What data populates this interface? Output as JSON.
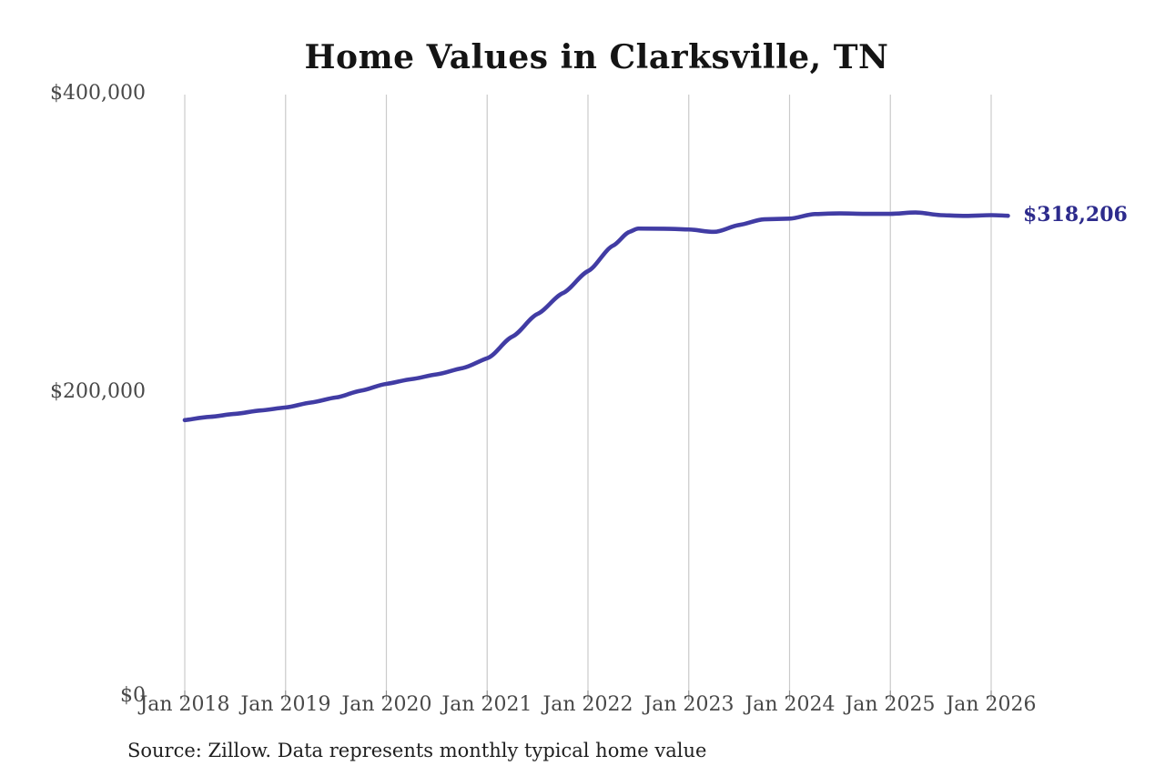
{
  "title": "Home Values in Clarksville, TN",
  "source_note": "Source: Zillow. Data represents monthly typical home value",
  "colors": {
    "line": "#413CA4",
    "end_label": "#2D2B8C",
    "gridline": "#CBCBCB",
    "tick": "#8F8F8F",
    "axis_text": "#484848",
    "title_text": "#141414",
    "source_text": "#1F1F1F",
    "background": "#FFFFFF"
  },
  "chart_data": {
    "type": "line",
    "title": "Home Values in Clarksville, TN",
    "xlabel": "",
    "ylabel": "",
    "ylim": [
      0,
      400000
    ],
    "grid": "vertical-only",
    "legend": "none",
    "x_tick_labels": [
      "Jan 2018",
      "Jan 2019",
      "Jan 2020",
      "Jan 2021",
      "Jan 2022",
      "Jan 2023",
      "Jan 2024",
      "Jan 2025",
      "Jan 2026"
    ],
    "y_ticks": [
      {
        "value": 0,
        "label": "$0"
      },
      {
        "value": 200000,
        "label": "$200,000"
      },
      {
        "value": 400000,
        "label": "$400,000"
      }
    ],
    "x": [
      "2018-01",
      "2018-04",
      "2018-07",
      "2018-10",
      "2019-01",
      "2019-04",
      "2019-07",
      "2019-10",
      "2020-01",
      "2020-04",
      "2020-07",
      "2020-10",
      "2021-01",
      "2021-04",
      "2021-07",
      "2021-10",
      "2022-01",
      "2022-04",
      "2022-06",
      "2022-07",
      "2022-10",
      "2023-01",
      "2023-04",
      "2023-07",
      "2023-10",
      "2024-01",
      "2024-04",
      "2024-07",
      "2024-10",
      "2025-01",
      "2025-04",
      "2025-07",
      "2025-10",
      "2026-01",
      "2026-03"
    ],
    "series": [
      {
        "name": "Monthly typical home value",
        "values": [
          181200,
          183400,
          185400,
          187700,
          189700,
          193000,
          196400,
          201000,
          205500,
          208700,
          211900,
          216000,
          222700,
          237200,
          252400,
          266300,
          281100,
          298200,
          307500,
          309600,
          309500,
          309000,
          307400,
          312000,
          315800,
          316300,
          319300,
          319800,
          319500,
          319500,
          320400,
          318600,
          318100,
          318600,
          318206
        ]
      }
    ],
    "end_annotation": {
      "text": "$318,206",
      "value": 318206,
      "x": "2026-03"
    }
  }
}
